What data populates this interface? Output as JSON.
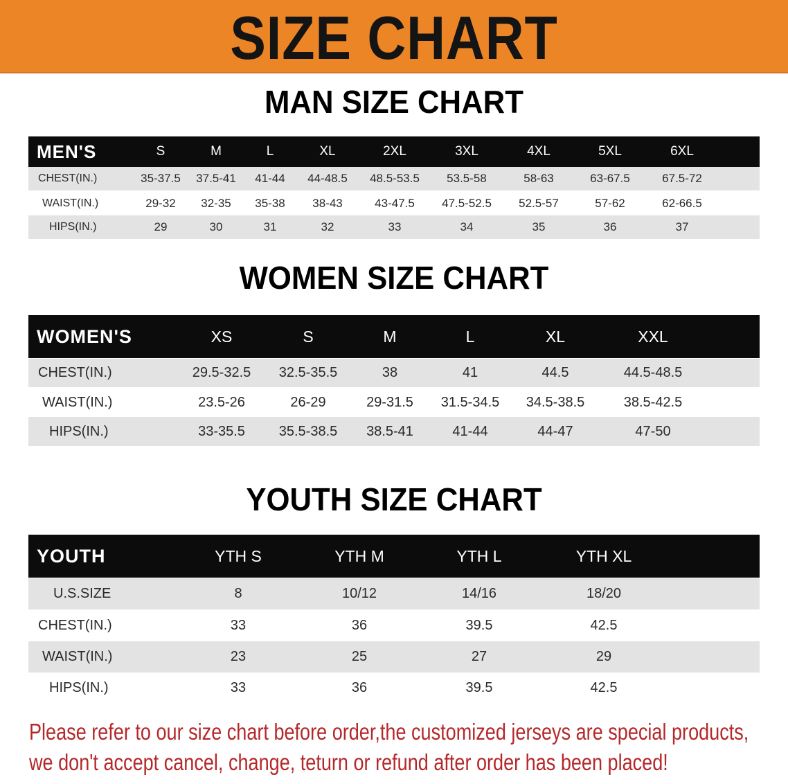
{
  "banner_title": "SIZE CHART",
  "colors": {
    "banner": "#ec8526",
    "header_row": "#0c0c0c",
    "stripe": "#e3e3e3",
    "note": "#b5282a"
  },
  "men": {
    "title": "MAN SIZE CHART",
    "corner": "MEN'S",
    "sizes": [
      "S",
      "M",
      "L",
      "XL",
      "2XL",
      "3XL",
      "4XL",
      "5XL",
      "6XL"
    ],
    "rows": [
      {
        "label": "CHEST(IN.)",
        "values": [
          "35-37.5",
          "37.5-41",
          "41-44",
          "44-48.5",
          "48.5-53.5",
          "53.5-58",
          "58-63",
          "63-67.5",
          "67.5-72"
        ]
      },
      {
        "label": "WAIST(IN.)",
        "values": [
          "29-32",
          "32-35",
          "35-38",
          "38-43",
          "43-47.5",
          "47.5-52.5",
          "52.5-57",
          "57-62",
          "62-66.5"
        ]
      },
      {
        "label": "HIPS(IN.)",
        "values": [
          "29",
          "30",
          "31",
          "32",
          "33",
          "34",
          "35",
          "36",
          "37"
        ]
      }
    ]
  },
  "women": {
    "title": "WOMEN SIZE CHART",
    "corner": "WOMEN'S",
    "sizes": [
      "XS",
      "S",
      "M",
      "L",
      "XL",
      "XXL"
    ],
    "rows": [
      {
        "label": "CHEST(IN.)",
        "values": [
          "29.5-32.5",
          "32.5-35.5",
          "38",
          "41",
          "44.5",
          "44.5-48.5"
        ]
      },
      {
        "label": "WAIST(IN.)",
        "values": [
          "23.5-26",
          "26-29",
          "29-31.5",
          "31.5-34.5",
          "34.5-38.5",
          "38.5-42.5"
        ]
      },
      {
        "label": "HIPS(IN.)",
        "values": [
          "33-35.5",
          "35.5-38.5",
          "38.5-41",
          "41-44",
          "44-47",
          "47-50"
        ]
      }
    ]
  },
  "youth": {
    "title": "YOUTH SIZE CHART",
    "corner": "YOUTH",
    "sizes": [
      "YTH S",
      "YTH M",
      "YTH L",
      "YTH XL"
    ],
    "rows": [
      {
        "label": "U.S.SIZE",
        "values": [
          "8",
          "10/12",
          "14/16",
          "18/20"
        ]
      },
      {
        "label": "CHEST(IN.)",
        "values": [
          "33",
          "36",
          "39.5",
          "42.5"
        ]
      },
      {
        "label": "WAIST(IN.)",
        "values": [
          "23",
          "25",
          "27",
          "29"
        ]
      },
      {
        "label": "HIPS(IN.)",
        "values": [
          "33",
          "36",
          "39.5",
          "42.5"
        ]
      }
    ]
  },
  "notice": {
    "line1": "Please refer to our size chart before order,the customized jerseys are special products,",
    "line2": "we don't accept cancel, change, teturn or refund after order has been placed!"
  }
}
